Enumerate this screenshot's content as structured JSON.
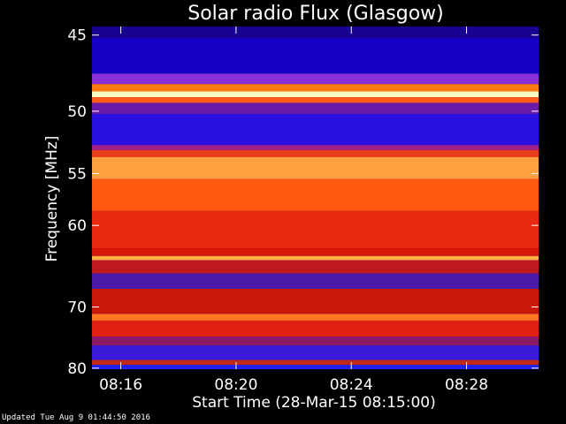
{
  "chart_data": {
    "type": "heatmap",
    "title": "Solar radio Flux (Glasgow)",
    "xlabel": "Start Time (28-Mar-15 08:15:00)",
    "ylabel": "Frequency [MHz]",
    "x_ticks": [
      "08:16",
      "08:20",
      "08:24",
      "08:28"
    ],
    "y_ticks": [
      45,
      50,
      55,
      60,
      70,
      80
    ],
    "x_range": [
      "08:15:00",
      "08:30:30"
    ],
    "y_range": [
      44.5,
      80.2
    ],
    "y_scale": "reciprocal",
    "bands": [
      {
        "from": 44.5,
        "to": 45.2,
        "color": "#1a0090",
        "level": 0.05
      },
      {
        "from": 45.2,
        "to": 47.4,
        "color": "#1500c8",
        "level": 0.1
      },
      {
        "from": 47.4,
        "to": 48.1,
        "color": "#8a2fd8",
        "level": 0.3
      },
      {
        "from": 48.1,
        "to": 48.6,
        "color": "#ff7a10",
        "level": 0.75
      },
      {
        "from": 48.6,
        "to": 49.0,
        "color": "#ffffc0",
        "level": 1.0
      },
      {
        "from": 49.0,
        "to": 49.4,
        "color": "#ff5a1a",
        "level": 0.7
      },
      {
        "from": 49.4,
        "to": 50.2,
        "color": "#6a1aa8",
        "level": 0.25
      },
      {
        "from": 50.2,
        "to": 52.6,
        "color": "#2a10e0",
        "level": 0.12
      },
      {
        "from": 52.6,
        "to": 53.0,
        "color": "#a0208a",
        "level": 0.35
      },
      {
        "from": 53.0,
        "to": 53.6,
        "color": "#e8401a",
        "level": 0.65
      },
      {
        "from": 53.6,
        "to": 55.5,
        "color": "#ffa040",
        "level": 0.85
      },
      {
        "from": 55.5,
        "to": 58.5,
        "color": "#ff5a10",
        "level": 0.7
      },
      {
        "from": 58.5,
        "to": 62.5,
        "color": "#e82a10",
        "level": 0.6
      },
      {
        "from": 62.5,
        "to": 63.4,
        "color": "#d81808",
        "level": 0.55
      },
      {
        "from": 63.4,
        "to": 63.9,
        "color": "#ffb040",
        "level": 0.9
      },
      {
        "from": 63.9,
        "to": 65.5,
        "color": "#c01a20",
        "level": 0.5
      },
      {
        "from": 65.5,
        "to": 67.5,
        "color": "#4a1aa8",
        "level": 0.2
      },
      {
        "from": 67.5,
        "to": 71.0,
        "color": "#c81808",
        "level": 0.5
      },
      {
        "from": 71.0,
        "to": 72.0,
        "color": "#ff7a20",
        "level": 0.8
      },
      {
        "from": 72.0,
        "to": 74.5,
        "color": "#e02010",
        "level": 0.6
      },
      {
        "from": 74.5,
        "to": 76.0,
        "color": "#8a1a6a",
        "level": 0.35
      },
      {
        "from": 76.0,
        "to": 78.5,
        "color": "#3a1ad8",
        "level": 0.15
      },
      {
        "from": 78.5,
        "to": 79.4,
        "color": "#c02818",
        "level": 0.5
      },
      {
        "from": 79.4,
        "to": 80.2,
        "color": "#2020f0",
        "level": 0.1
      }
    ],
    "grid": false,
    "legend": "none"
  },
  "footer_text": "Updated Tue Aug  9 01:44:50 2016"
}
